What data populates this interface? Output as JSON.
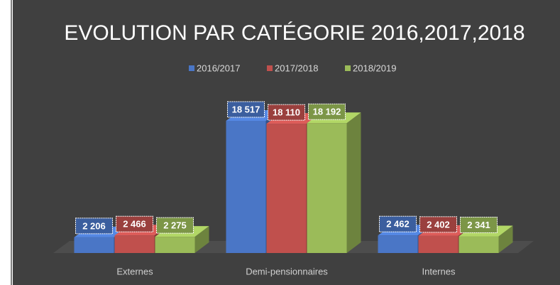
{
  "chart_data": {
    "type": "bar3d",
    "title": "EVOLUTION PAR CATÉGORIE 2016,2017,2018",
    "categories": [
      "Externes",
      "Demi-pensionnaires",
      "Internes"
    ],
    "legend": "top",
    "series": [
      {
        "name": "2016/2017",
        "color": "#4a76c6",
        "values": [
          2206,
          18517,
          2462
        ],
        "value_labels": [
          "2 206",
          "18 517",
          "2 462"
        ]
      },
      {
        "name": "2017/2018",
        "color": "#c0504d",
        "values": [
          2466,
          18110,
          2402
        ],
        "value_labels": [
          "2 466",
          "18 110",
          "2 402"
        ]
      },
      {
        "name": "2018/2019",
        "color": "#9bbb59",
        "values": [
          2275,
          18192,
          2341
        ],
        "value_labels": [
          "2 275",
          "18 192",
          "2 341"
        ]
      }
    ]
  }
}
